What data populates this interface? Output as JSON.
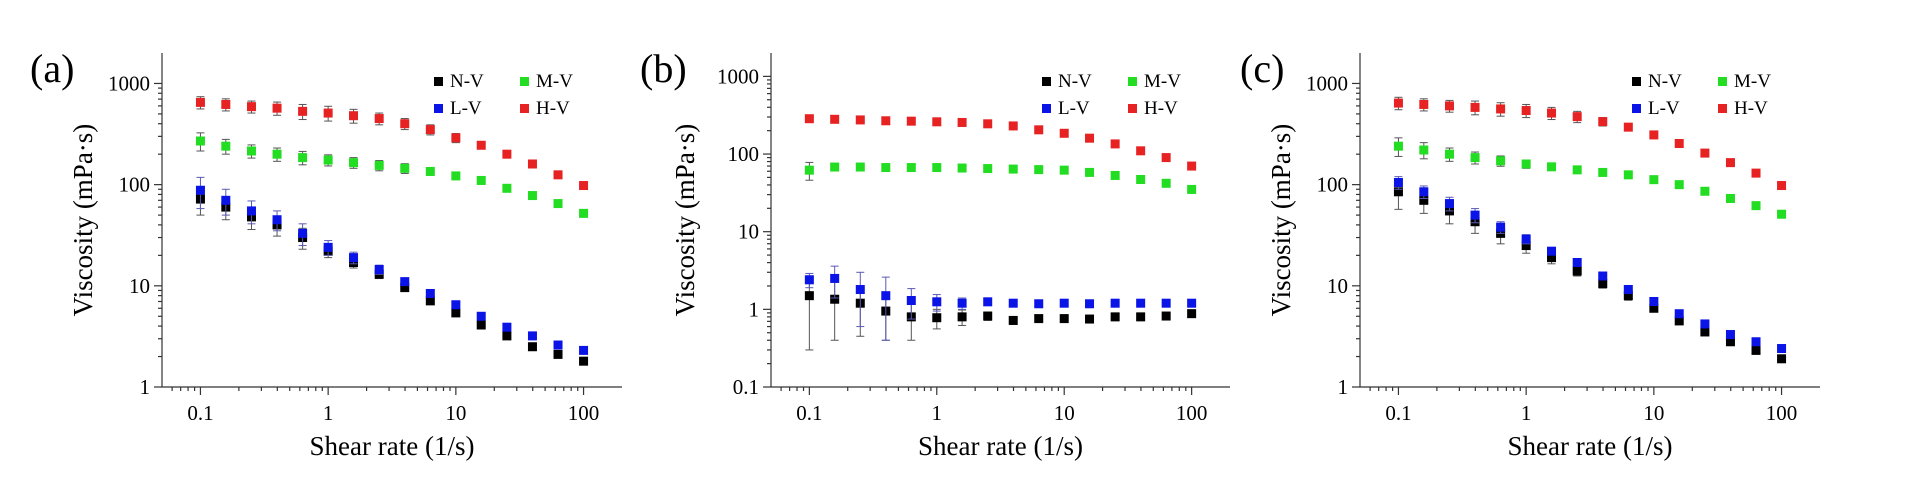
{
  "colors": {
    "N-V": "#000000",
    "L-V": "#0a14e6",
    "M-V": "#22dd22",
    "H-V": "#e62222",
    "errorbar_default": "#555555",
    "errorbar_blue": "#5a5ab4"
  },
  "chart_data": [
    {
      "type": "scatter",
      "panel_label": "(a)",
      "xlabel": "Shear rate (1/s)",
      "ylabel": "Viscosity (mPa·s)",
      "xscale": "log",
      "yscale": "log",
      "xlim": [
        0.05,
        200
      ],
      "ylim": [
        1,
        2000
      ],
      "xticks": [
        0.1,
        1,
        10,
        100
      ],
      "xtick_labels": [
        "0.1",
        "1",
        "10",
        "100"
      ],
      "yticks": [
        1,
        10,
        100,
        1000
      ],
      "ytick_labels": [
        "1",
        "10",
        "100",
        "1000"
      ],
      "legend_position": "top-right",
      "legend": [
        "N-V",
        "M-V",
        "L-V",
        "H-V"
      ],
      "x": [
        0.1,
        0.158,
        0.251,
        0.398,
        0.631,
        1,
        1.58,
        2.51,
        3.98,
        6.31,
        10,
        15.8,
        25.1,
        39.8,
        63.1,
        100
      ],
      "series": [
        {
          "name": "N-V",
          "values": [
            72,
            60,
            48,
            40,
            30,
            22,
            17,
            13,
            9.6,
            7.1,
            5.4,
            4.1,
            3.2,
            2.5,
            2.1,
            1.8
          ],
          "errors": [
            22,
            15,
            12,
            9,
            7,
            3,
            2,
            1.2,
            0,
            0,
            0,
            0,
            0,
            0,
            0,
            0
          ]
        },
        {
          "name": "L-V",
          "values": [
            88,
            70,
            55,
            45,
            33,
            24,
            19,
            14.5,
            11,
            8.4,
            6.5,
            5.0,
            3.9,
            3.2,
            2.6,
            2.3
          ],
          "errors": [
            30,
            20,
            14,
            10,
            8,
            4,
            2.5,
            1.5,
            0,
            0,
            0,
            0,
            0,
            0,
            0,
            0
          ]
        },
        {
          "name": "M-V",
          "values": [
            270,
            240,
            215,
            200,
            185,
            175,
            165,
            155,
            145,
            135,
            122,
            110,
            92,
            78,
            65,
            52
          ],
          "errors": [
            55,
            40,
            32,
            30,
            28,
            22,
            20,
            18,
            16,
            0,
            0,
            0,
            0,
            0,
            0,
            0
          ]
        },
        {
          "name": "H-V",
          "values": [
            650,
            620,
            590,
            570,
            530,
            510,
            480,
            450,
            400,
            350,
            290,
            245,
            200,
            160,
            125,
            98
          ],
          "errors": [
            90,
            85,
            80,
            85,
            90,
            85,
            75,
            60,
            50,
            40,
            30,
            0,
            0,
            0,
            0,
            0
          ]
        }
      ]
    },
    {
      "type": "scatter",
      "panel_label": "(b)",
      "xlabel": "Shear rate (1/s)",
      "ylabel": "Viscosity (mPa·s)",
      "xscale": "log",
      "yscale": "log",
      "xlim": [
        0.05,
        200
      ],
      "ylim": [
        0.1,
        2000
      ],
      "xticks": [
        0.1,
        1,
        10,
        100
      ],
      "xtick_labels": [
        "0.1",
        "1",
        "10",
        "100"
      ],
      "yticks": [
        0.1,
        1,
        10,
        100,
        1000
      ],
      "ytick_labels": [
        "0.1",
        "1",
        "10",
        "100",
        "1000"
      ],
      "legend_position": "top-right",
      "legend": [
        "N-V",
        "M-V",
        "L-V",
        "H-V"
      ],
      "x": [
        0.1,
        0.158,
        0.251,
        0.398,
        0.631,
        1,
        1.58,
        2.51,
        3.98,
        6.31,
        10,
        15.8,
        25.1,
        39.8,
        63.1,
        100
      ],
      "series": [
        {
          "name": "N-V",
          "values": [
            1.5,
            1.35,
            1.2,
            0.95,
            0.8,
            0.78,
            0.8,
            0.82,
            0.72,
            0.76,
            0.76,
            0.75,
            0.8,
            0.8,
            0.82,
            0.88
          ],
          "errors": [
            1.2,
            0.95,
            0.75,
            0.55,
            0.4,
            0.22,
            0.18,
            0.1,
            0.08,
            0,
            0,
            0,
            0,
            0,
            0,
            0
          ]
        },
        {
          "name": "L-V",
          "values": [
            2.4,
            2.5,
            1.8,
            1.5,
            1.3,
            1.25,
            1.2,
            1.25,
            1.2,
            1.18,
            1.2,
            1.18,
            1.2,
            1.2,
            1.2,
            1.2
          ],
          "errors": [
            0.5,
            1.1,
            1.2,
            1.1,
            0.55,
            0.3,
            0.2,
            0,
            0,
            0,
            0,
            0,
            0,
            0,
            0,
            0
          ]
        },
        {
          "name": "M-V",
          "values": [
            62,
            68,
            68,
            67,
            67,
            67,
            66,
            65,
            64,
            63,
            62,
            58,
            53,
            47,
            42,
            35
          ],
          "errors": [
            16,
            7,
            5,
            4,
            4,
            3,
            3,
            3,
            2,
            0,
            0,
            0,
            0,
            0,
            0,
            0
          ]
        },
        {
          "name": "H-V",
          "values": [
            285,
            280,
            275,
            268,
            265,
            260,
            255,
            245,
            230,
            205,
            185,
            160,
            135,
            110,
            90,
            70
          ],
          "errors": [
            18,
            15,
            12,
            10,
            8,
            8,
            0,
            0,
            0,
            0,
            0,
            0,
            0,
            0,
            0,
            0
          ]
        }
      ]
    },
    {
      "type": "scatter",
      "panel_label": "(c)",
      "xlabel": "Shear rate (1/s)",
      "ylabel": "Viscosity (mPa·s)",
      "xscale": "log",
      "yscale": "log",
      "xlim": [
        0.05,
        200
      ],
      "ylim": [
        1,
        2000
      ],
      "xticks": [
        0.1,
        1,
        10,
        100
      ],
      "xtick_labels": [
        "0.1",
        "1",
        "10",
        "100"
      ],
      "yticks": [
        1,
        10,
        100,
        1000
      ],
      "ytick_labels": [
        "1",
        "10",
        "100",
        "1000"
      ],
      "legend_position": "top-right",
      "legend": [
        "N-V",
        "M-V",
        "L-V",
        "H-V"
      ],
      "x": [
        0.1,
        0.158,
        0.251,
        0.398,
        0.631,
        1,
        1.58,
        2.51,
        3.98,
        6.31,
        10,
        15.8,
        25.1,
        39.8,
        63.1,
        100
      ],
      "series": [
        {
          "name": "N-V",
          "values": [
            85,
            70,
            55,
            43,
            33,
            25,
            19,
            14,
            10.5,
            8.0,
            6.0,
            4.5,
            3.5,
            2.8,
            2.3,
            1.9
          ],
          "errors": [
            28,
            18,
            14,
            10,
            7,
            4,
            2.5,
            1.5,
            1,
            0.8,
            0,
            0,
            0,
            0,
            0,
            0
          ]
        },
        {
          "name": "L-V",
          "values": [
            105,
            85,
            65,
            50,
            38,
            29,
            22,
            17,
            12.5,
            9.2,
            7.0,
            5.3,
            4.2,
            3.3,
            2.8,
            2.4
          ],
          "errors": [
            15,
            12,
            10,
            8,
            5,
            3,
            0,
            0,
            0,
            0,
            0,
            0,
            0,
            0,
            0,
            0
          ]
        },
        {
          "name": "M-V",
          "values": [
            240,
            220,
            200,
            185,
            172,
            160,
            150,
            140,
            132,
            125,
            112,
            100,
            86,
            73,
            62,
            51
          ],
          "errors": [
            50,
            40,
            30,
            25,
            20,
            15,
            12,
            10,
            0,
            0,
            0,
            0,
            0,
            0,
            0,
            0
          ]
        },
        {
          "name": "H-V",
          "values": [
            640,
            620,
            600,
            580,
            560,
            540,
            510,
            470,
            420,
            370,
            310,
            255,
            205,
            165,
            130,
            98
          ],
          "errors": [
            90,
            85,
            80,
            90,
            85,
            80,
            70,
            60,
            40,
            30,
            0,
            0,
            0,
            0,
            0,
            0
          ]
        }
      ]
    }
  ]
}
